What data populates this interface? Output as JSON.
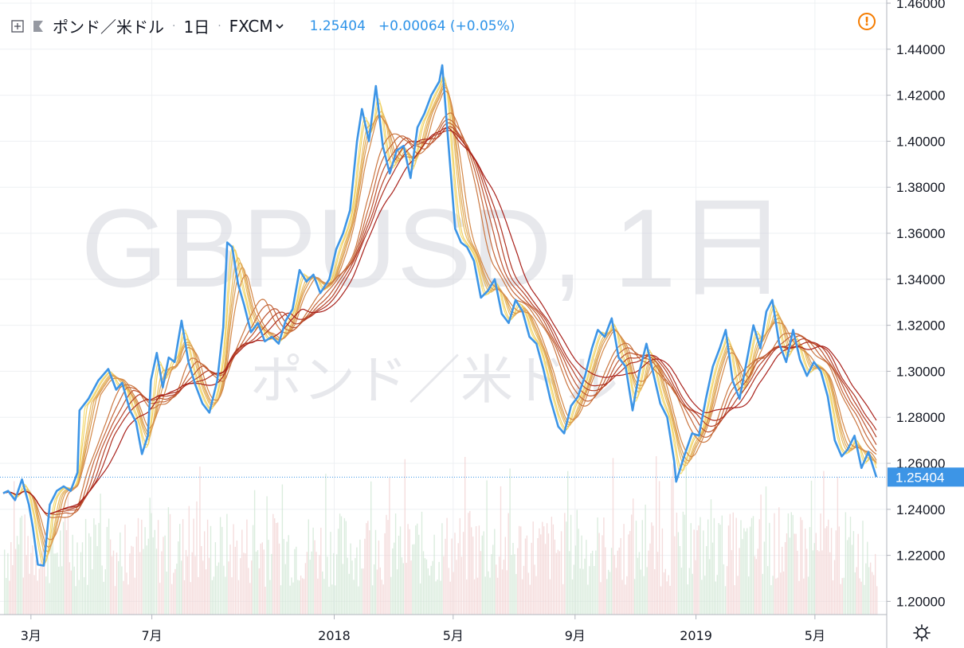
{
  "header": {
    "symbol_name": "ポンド／米ドル",
    "separator": "·",
    "interval": "1日",
    "exchange": "FXCM",
    "last_price": "1.25404",
    "change": "+0.00064 (+0.05%)",
    "icons": [
      "crosshair-add-icon",
      "flag-icon",
      "chevron-down-icon",
      "warning-icon",
      "gear-icon"
    ]
  },
  "watermark": {
    "symbol": "GBPUSD, 1日",
    "description": "ポンド／米ドル"
  },
  "colors": {
    "price_line": "#3d95e6",
    "ribbon_light": "#f6df70",
    "ribbon_dark": "#a8201a",
    "grid": "#eef0f3",
    "axis_text": "#131722",
    "last_price_badge": "#3d95e6",
    "volume_up": "#cfe6d3",
    "volume_down": "#f1d2d2"
  },
  "chart_data": {
    "type": "line",
    "title": "",
    "y_tick_labels": [
      "1.46000",
      "1.44000",
      "1.42000",
      "1.40000",
      "1.38000",
      "1.36000",
      "1.34000",
      "1.32000",
      "1.30000",
      "1.28000",
      "1.26000",
      "1.24000",
      "1.22000",
      "1.20000"
    ],
    "x_tick_labels": [
      "3月",
      "7月",
      "2018",
      "5月",
      "9月",
      "2019",
      "5月"
    ],
    "ylim": [
      1.19,
      1.46
    ],
    "grid": true,
    "last_value_label": "1.25404",
    "series": [
      {
        "kind": "price",
        "x": [
          "2017-02-01",
          "2017-02-06",
          "2017-02-13",
          "2017-02-20",
          "2017-02-27",
          "2017-03-03",
          "2017-03-08",
          "2017-03-14",
          "2017-03-20",
          "2017-03-27",
          "2017-04-03",
          "2017-04-10",
          "2017-04-17",
          "2017-04-19",
          "2017-04-28",
          "2017-05-08",
          "2017-05-12",
          "2017-05-18",
          "2017-05-26",
          "2017-06-01",
          "2017-06-09",
          "2017-06-15",
          "2017-06-21",
          "2017-06-27",
          "2017-06-30",
          "2017-07-06",
          "2017-07-12",
          "2017-07-18",
          "2017-07-24",
          "2017-07-31",
          "2017-08-07",
          "2017-08-14",
          "2017-08-21",
          "2017-08-28",
          "2017-09-05",
          "2017-09-11",
          "2017-09-15",
          "2017-09-20",
          "2017-09-26",
          "2017-10-02",
          "2017-10-09",
          "2017-10-16",
          "2017-10-23",
          "2017-10-30",
          "2017-11-06",
          "2017-11-13",
          "2017-11-20",
          "2017-11-27",
          "2017-12-04",
          "2017-12-11",
          "2017-12-18",
          "2017-12-27",
          "2018-01-03",
          "2018-01-10",
          "2018-01-17",
          "2018-01-24",
          "2018-01-29",
          "2018-02-05",
          "2018-02-12",
          "2018-02-19",
          "2018-02-26",
          "2018-03-05",
          "2018-03-12",
          "2018-03-19",
          "2018-03-26",
          "2018-04-02",
          "2018-04-09",
          "2018-04-17",
          "2018-04-20",
          "2018-04-26",
          "2018-05-03",
          "2018-05-09",
          "2018-05-15",
          "2018-05-22",
          "2018-05-29",
          "2018-06-05",
          "2018-06-12",
          "2018-06-19",
          "2018-06-26",
          "2018-07-03",
          "2018-07-10",
          "2018-07-17",
          "2018-07-24",
          "2018-07-31",
          "2018-08-07",
          "2018-08-15",
          "2018-08-21",
          "2018-08-28",
          "2018-09-04",
          "2018-09-11",
          "2018-09-18",
          "2018-09-24",
          "2018-10-01",
          "2018-10-08",
          "2018-10-15",
          "2018-10-22",
          "2018-10-29",
          "2018-11-05",
          "2018-11-12",
          "2018-11-19",
          "2018-11-26",
          "2018-12-03",
          "2018-12-10",
          "2018-12-12",
          "2018-12-20",
          "2018-12-28",
          "2019-01-04",
          "2019-01-11",
          "2019-01-18",
          "2019-01-25",
          "2019-01-31",
          "2019-02-07",
          "2019-02-14",
          "2019-02-21",
          "2019-02-28",
          "2019-03-07",
          "2019-03-13",
          "2019-03-19",
          "2019-03-26",
          "2019-04-02",
          "2019-04-09",
          "2019-04-16",
          "2019-04-23",
          "2019-04-30",
          "2019-05-07",
          "2019-05-14",
          "2019-05-21",
          "2019-05-28",
          "2019-06-03",
          "2019-06-10",
          "2019-06-17",
          "2019-06-24",
          "2019-07-02"
        ],
        "values": [
          1.247,
          1.248,
          1.244,
          1.253,
          1.242,
          1.232,
          1.216,
          1.2155,
          1.242,
          1.248,
          1.25,
          1.248,
          1.256,
          1.283,
          1.288,
          1.296,
          1.298,
          1.301,
          1.292,
          1.295,
          1.283,
          1.278,
          1.264,
          1.272,
          1.296,
          1.308,
          1.293,
          1.306,
          1.304,
          1.322,
          1.304,
          1.294,
          1.286,
          1.282,
          1.296,
          1.319,
          1.356,
          1.354,
          1.338,
          1.329,
          1.317,
          1.321,
          1.313,
          1.315,
          1.312,
          1.322,
          1.327,
          1.344,
          1.339,
          1.342,
          1.334,
          1.34,
          1.353,
          1.36,
          1.37,
          1.4,
          1.414,
          1.4,
          1.424,
          1.398,
          1.386,
          1.396,
          1.398,
          1.384,
          1.406,
          1.412,
          1.42,
          1.426,
          1.433,
          1.4,
          1.362,
          1.356,
          1.354,
          1.348,
          1.332,
          1.335,
          1.34,
          1.325,
          1.321,
          1.331,
          1.326,
          1.315,
          1.312,
          1.301,
          1.288,
          1.276,
          1.273,
          1.285,
          1.289,
          1.298,
          1.31,
          1.318,
          1.315,
          1.323,
          1.306,
          1.302,
          1.283,
          1.3,
          1.312,
          1.299,
          1.286,
          1.28,
          1.261,
          1.252,
          1.263,
          1.273,
          1.272,
          1.288,
          1.302,
          1.31,
          1.318,
          1.296,
          1.288,
          1.304,
          1.32,
          1.31,
          1.326,
          1.331,
          1.312,
          1.304,
          1.318,
          1.305,
          1.298,
          1.304,
          1.3,
          1.289,
          1.27,
          1.263,
          1.266,
          1.272,
          1.258,
          1.265,
          1.254
        ]
      },
      {
        "kind": "moving-average-ribbon",
        "periods": [
          3,
          5,
          8,
          10,
          12,
          15,
          30,
          35,
          40,
          45,
          50,
          60
        ]
      },
      {
        "kind": "volume"
      }
    ]
  }
}
